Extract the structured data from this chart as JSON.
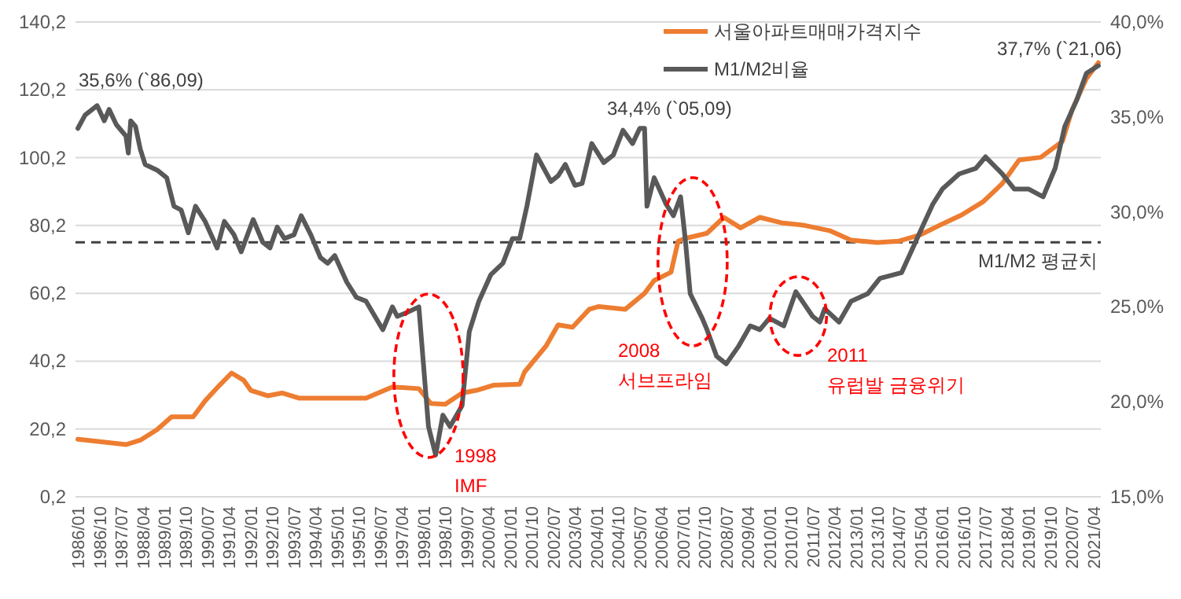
{
  "chart_data": {
    "type": "line",
    "series": [
      {
        "name": "서울아파트매매가격지수",
        "color": "#ed7d31",
        "x": [
          "1986-01",
          "1987-09",
          "1988-03",
          "1988-10",
          "1989-04",
          "1990-01",
          "1990-06",
          "1990-12",
          "1991-05",
          "1991-10",
          "1992-01",
          "1992-08",
          "1993-02",
          "1993-09",
          "1996-01",
          "1996-12",
          "1997-11",
          "1998-04",
          "1998-10",
          "1999-05",
          "1999-11",
          "2000-06",
          "2001-05",
          "2001-07",
          "2002-04",
          "2002-09",
          "2003-03",
          "2003-10",
          "2004-02",
          "2005-01",
          "2005-09",
          "2006-01",
          "2006-08",
          "2006-11",
          "2007-02",
          "2007-11",
          "2008-06",
          "2009-01",
          "2009-09",
          "2010-06",
          "2011-03",
          "2012-02",
          "2012-11",
          "2013-10",
          "2014-07",
          "2015-04",
          "2015-12",
          "2016-09",
          "2017-06",
          "2018-02",
          "2018-09",
          "2019-06",
          "2020-03",
          "2020-07",
          "2021-01",
          "2021-06"
        ],
        "values": [
          17.2,
          15.6,
          16.9,
          20.0,
          23.8,
          23.8,
          28.5,
          33.1,
          36.7,
          34.6,
          31.6,
          30.0,
          30.8,
          29.3,
          29.3,
          32.6,
          32.1,
          27.7,
          27.5,
          30.8,
          31.6,
          33.1,
          33.4,
          37.0,
          44.7,
          50.9,
          50.2,
          55.5,
          56.3,
          55.5,
          60.2,
          64.0,
          66.4,
          75.6,
          76.4,
          77.9,
          82.6,
          79.5,
          82.6,
          81.0,
          80.3,
          78.7,
          75.9,
          75.2,
          75.6,
          77.5,
          80.3,
          83.3,
          87.2,
          92.6,
          99.5,
          100.3,
          105.0,
          114.2,
          123.5,
          128.2
        ]
      },
      {
        "name": "M1/M2비율",
        "color": "#595959",
        "axis": "y2",
        "x": [
          "1986-01",
          "1986-04",
          "1986-09",
          "1986-12",
          "1987-02",
          "1987-05",
          "1987-09",
          "1987-10",
          "1987-11",
          "1988-01",
          "1988-03",
          "1988-05",
          "1988-10",
          "1989-02",
          "1989-05",
          "1989-08",
          "1989-11",
          "1990-02",
          "1990-06",
          "1990-11",
          "1991-02",
          "1991-06",
          "1991-09",
          "1992-02",
          "1992-06",
          "1992-09",
          "1992-12",
          "1993-03",
          "1993-07",
          "1993-10",
          "1994-02",
          "1994-06",
          "1994-09",
          "1994-12",
          "1995-05",
          "1995-09",
          "1996-01",
          "1996-08",
          "1996-12",
          "1997-02",
          "1997-06",
          "1997-11",
          "1998-03",
          "1998-06",
          "1998-09",
          "1998-12",
          "1999-05",
          "1999-08",
          "1999-12",
          "2000-05",
          "2000-10",
          "2001-02",
          "2001-05",
          "2001-08",
          "2001-12",
          "2002-06",
          "2002-09",
          "2002-12",
          "2003-04",
          "2003-07",
          "2003-11",
          "2004-04",
          "2004-08",
          "2004-12",
          "2005-04",
          "2005-07",
          "2005-09",
          "2005-10",
          "2006-01",
          "2006-06",
          "2006-09",
          "2006-12",
          "2007-02",
          "2007-04",
          "2007-09",
          "2007-11",
          "2008-03",
          "2008-07",
          "2008-12",
          "2009-05",
          "2009-09",
          "2010-01",
          "2010-07",
          "2010-12",
          "2011-07",
          "2011-10",
          "2011-12",
          "2012-06",
          "2012-11",
          "2013-06",
          "2013-11",
          "2014-08",
          "2014-12",
          "2015-05",
          "2015-09",
          "2016-01",
          "2016-08",
          "2017-03",
          "2017-07",
          "2018-02",
          "2018-07",
          "2019-01",
          "2019-07",
          "2019-12",
          "2020-04",
          "2020-09",
          "2021-01",
          "2021-06"
        ],
        "values": [
          34.4,
          35.1,
          35.6,
          34.8,
          35.4,
          34.6,
          34.0,
          33.1,
          34.8,
          34.5,
          33.3,
          32.5,
          32.2,
          31.8,
          30.3,
          30.1,
          28.9,
          30.3,
          29.5,
          28.1,
          29.5,
          28.8,
          27.9,
          29.6,
          28.4,
          28.1,
          29.2,
          28.6,
          28.8,
          29.8,
          28.8,
          27.6,
          27.3,
          27.7,
          26.3,
          25.5,
          25.3,
          23.8,
          25.0,
          24.5,
          24.7,
          25.0,
          18.7,
          17.2,
          19.3,
          18.7,
          19.8,
          23.7,
          25.3,
          26.7,
          27.3,
          28.6,
          28.6,
          30.3,
          33.0,
          31.6,
          31.9,
          32.5,
          31.4,
          31.5,
          33.6,
          32.6,
          33.0,
          34.3,
          33.6,
          34.4,
          34.4,
          30.3,
          31.8,
          30.4,
          29.8,
          30.8,
          28.5,
          25.7,
          24.4,
          23.8,
          22.4,
          22.0,
          22.9,
          24.0,
          23.8,
          24.4,
          24.0,
          25.8,
          24.5,
          24.2,
          24.9,
          24.2,
          25.3,
          25.7,
          26.5,
          26.8,
          27.9,
          29.3,
          30.4,
          31.2,
          32.0,
          32.3,
          32.9,
          32.0,
          31.2,
          31.2,
          30.8,
          32.3,
          34.5,
          35.9,
          37.3,
          37.7
        ]
      }
    ],
    "xlim": [
      "1985-12",
      "2021-07"
    ],
    "xticks": [
      {
        "value": "1986-01",
        "label": "1986/01"
      },
      {
        "value": "1986-10",
        "label": "1986/10"
      },
      {
        "value": "1987-07",
        "label": "1987/07"
      },
      {
        "value": "1988-04",
        "label": "1988/04"
      },
      {
        "value": "1989-01",
        "label": "1989/01"
      },
      {
        "value": "1989-10",
        "label": "1989/10"
      },
      {
        "value": "1990-07",
        "label": "1990/07"
      },
      {
        "value": "1991-04",
        "label": "1991/04"
      },
      {
        "value": "1992-01",
        "label": "1992/01"
      },
      {
        "value": "1992-10",
        "label": "1992/10"
      },
      {
        "value": "1993-07",
        "label": "1993/07"
      },
      {
        "value": "1994-04",
        "label": "1994/04"
      },
      {
        "value": "1995-01",
        "label": "1995/01"
      },
      {
        "value": "1995-10",
        "label": "1995/10"
      },
      {
        "value": "1996-07",
        "label": "1996/07"
      },
      {
        "value": "1997-04",
        "label": "1997/04"
      },
      {
        "value": "1998-01",
        "label": "1998/01"
      },
      {
        "value": "1998-10",
        "label": "1998/10"
      },
      {
        "value": "1999-07",
        "label": "1999/07"
      },
      {
        "value": "2000-04",
        "label": "2000/04"
      },
      {
        "value": "2001-01",
        "label": "2001/01"
      },
      {
        "value": "2001-10",
        "label": "2001/10"
      },
      {
        "value": "2002-07",
        "label": "2002/07"
      },
      {
        "value": "2003-04",
        "label": "2003/04"
      },
      {
        "value": "2004-01",
        "label": "2004/01"
      },
      {
        "value": "2004-10",
        "label": "2004/10"
      },
      {
        "value": "2005-07",
        "label": "2005/07"
      },
      {
        "value": "2006-04",
        "label": "2006/04"
      },
      {
        "value": "2007-01",
        "label": "2007/01"
      },
      {
        "value": "2007-10",
        "label": "2007/10"
      },
      {
        "value": "2008-07",
        "label": "2008/07"
      },
      {
        "value": "2009-04",
        "label": "2009/04"
      },
      {
        "value": "2010-01",
        "label": "2010/01"
      },
      {
        "value": "2010-10",
        "label": "2010/10"
      },
      {
        "value": "2011-07",
        "label": "2011/07"
      },
      {
        "value": "2012-04",
        "label": "2012/04"
      },
      {
        "value": "2013-01",
        "label": "2013/01"
      },
      {
        "value": "2013-10",
        "label": "2013/10"
      },
      {
        "value": "2014-07",
        "label": "2014/07"
      },
      {
        "value": "2015-04",
        "label": "2015/04"
      },
      {
        "value": "2016-01",
        "label": "2016/01"
      },
      {
        "value": "2016-10",
        "label": "2016/10"
      },
      {
        "value": "2017-07",
        "label": "2017/07"
      },
      {
        "value": "2018-04",
        "label": "2018/04"
      },
      {
        "value": "2019-01",
        "label": "2019/01"
      },
      {
        "value": "2019-10",
        "label": "2019/10"
      },
      {
        "value": "2020-07",
        "label": "2020/07"
      },
      {
        "value": "2021-04",
        "label": "2021/04"
      }
    ],
    "ylim": [
      0.2,
      140.2
    ],
    "yticks": [
      {
        "value": 0.2,
        "label": "0,2"
      },
      {
        "value": 20.2,
        "label": "20,2"
      },
      {
        "value": 40.2,
        "label": "40,2"
      },
      {
        "value": 60.2,
        "label": "60,2"
      },
      {
        "value": 80.2,
        "label": "80,2"
      },
      {
        "value": 100.2,
        "label": "100,2"
      },
      {
        "value": 120.2,
        "label": "120,2"
      },
      {
        "value": 140.2,
        "label": "140,2"
      }
    ],
    "y2lim": [
      15,
      40
    ],
    "y2ticks": [
      {
        "value": 15,
        "label": "15,0%"
      },
      {
        "value": 20,
        "label": "20,0%"
      },
      {
        "value": 25,
        "label": "25,0%"
      },
      {
        "value": 30,
        "label": "30,0%"
      },
      {
        "value": 35,
        "label": "35,0%"
      },
      {
        "value": 40,
        "label": "40,0%"
      }
    ],
    "ref_lines": [
      {
        "axis": "y2",
        "value": 28.4,
        "label": "M1/M2 평균치",
        "color": "#404040",
        "line_style": "dashed"
      }
    ],
    "annotations": [
      "35,6% (`86,09)",
      "34,4% (`05,09)",
      "37,7% (`21,06)",
      "1998\nIMF",
      "2008\n서브프라임",
      "2011\n유럽발 금융위기"
    ],
    "grid": "y",
    "legend": "top",
    "marker": "none",
    "line_style": "solid"
  }
}
